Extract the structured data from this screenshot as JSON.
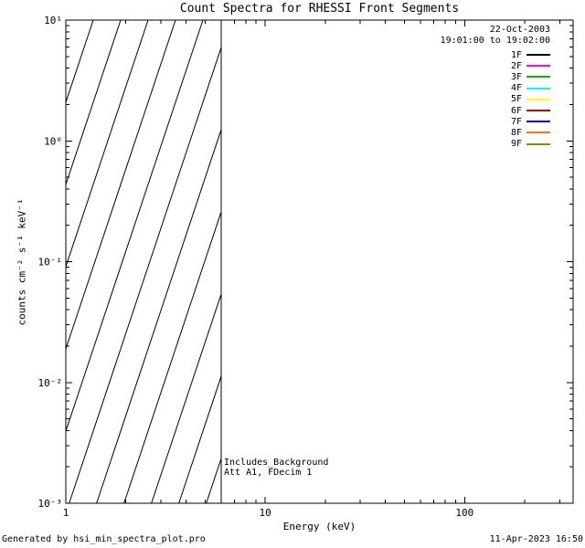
{
  "footer": {
    "generated_by": "Generated by hsi_min_spectra_plot.pro",
    "timestamp": "11-Apr-2023 16:50"
  },
  "chart_data": {
    "type": "line",
    "title": "Count Spectra for RHESSI Front Segments",
    "xlabel": "Energy (keV)",
    "ylabel": "counts cm⁻² s⁻¹ keV⁻¹",
    "xscale": "log",
    "yscale": "log",
    "xlim": [
      1,
      350
    ],
    "ylim": [
      0.001,
      10
    ],
    "x_ticks": [
      1,
      10,
      100
    ],
    "x_tick_labels": [
      "1",
      "10",
      "100"
    ],
    "y_ticks": [
      0.001,
      0.01,
      0.1,
      1,
      10
    ],
    "y_tick_labels": [
      "10⁻³",
      "10⁻²",
      "10⁻¹",
      "10⁰",
      "10¹"
    ],
    "grid": false,
    "hatched_region": {
      "x_start": 1,
      "x_end": 6,
      "style": "diagonal-hatch"
    },
    "annotations": [
      "Includes_Background",
      "Att A1, FDecim 1"
    ],
    "legend": {
      "position": "top-right",
      "date": "22-Oct-2003",
      "time_range": "19:01:00 to 19:02:00",
      "entries": [
        {
          "label": "1F",
          "color": "#000000"
        },
        {
          "label": "2F",
          "color": "#ff00ff"
        },
        {
          "label": "3F",
          "color": "#00bb00"
        },
        {
          "label": "4F",
          "color": "#00ffff"
        },
        {
          "label": "5F",
          "color": "#ffff00"
        },
        {
          "label": "6F",
          "color": "#aa0000"
        },
        {
          "label": "7F",
          "color": "#0000cc"
        },
        {
          "label": "8F",
          "color": "#ff7700"
        },
        {
          "label": "9F",
          "color": "#8b8b00"
        }
      ]
    },
    "series": []
  }
}
